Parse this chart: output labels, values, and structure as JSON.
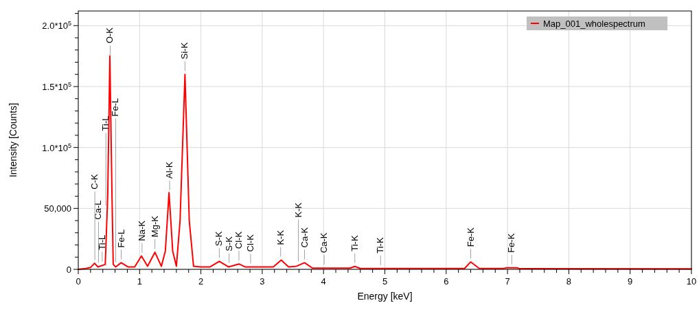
{
  "chart_data": {
    "type": "line",
    "xlabel": "Energy [keV]",
    "ylabel": "Intensity [Counts]",
    "xlim": [
      0,
      10
    ],
    "ylim": [
      0,
      212000
    ],
    "xticks": [
      0,
      {
        "value": 0.2,
        "label": null
      },
      {
        "value": 0.4,
        "label": null
      },
      {
        "value": 0.6,
        "label": null
      },
      {
        "value": 0.8,
        "label": null
      },
      1,
      {
        "value": 1.2,
        "label": null
      },
      {
        "value": 1.4,
        "label": null
      },
      {
        "value": 1.6,
        "label": null
      },
      {
        "value": 1.8,
        "label": null
      },
      2,
      {
        "value": 2.2,
        "label": null
      },
      {
        "value": 2.4,
        "label": null
      },
      {
        "value": 2.6,
        "label": null
      },
      {
        "value": 2.8,
        "label": null
      },
      3,
      {
        "value": 3.2,
        "label": null
      },
      {
        "value": 3.4,
        "label": null
      },
      {
        "value": 3.6,
        "label": null
      },
      {
        "value": 3.8,
        "label": null
      },
      4,
      {
        "value": 4.2,
        "label": null
      },
      {
        "value": 4.4,
        "label": null
      },
      {
        "value": 4.6,
        "label": null
      },
      {
        "value": 4.8,
        "label": null
      },
      5,
      {
        "value": 5.2,
        "label": null
      },
      {
        "value": 5.4,
        "label": null
      },
      {
        "value": 5.6,
        "label": null
      },
      {
        "value": 5.8,
        "label": null
      },
      6,
      {
        "value": 6.2,
        "label": null
      },
      {
        "value": 6.4,
        "label": null
      },
      {
        "value": 6.6,
        "label": null
      },
      {
        "value": 6.8,
        "label": null
      },
      7,
      {
        "value": 7.2,
        "label": null
      },
      {
        "value": 7.4,
        "label": null
      },
      {
        "value": 7.6,
        "label": null
      },
      {
        "value": 7.8,
        "label": null
      },
      8,
      {
        "value": 8.2,
        "label": null
      },
      {
        "value": 8.4,
        "label": null
      },
      {
        "value": 8.6,
        "label": null
      },
      {
        "value": 8.8,
        "label": null
      },
      9,
      {
        "value": 9.2,
        "label": null
      },
      {
        "value": 9.4,
        "label": null
      },
      {
        "value": 9.6,
        "label": null
      },
      {
        "value": 9.8,
        "label": null
      },
      10
    ],
    "yticks": [
      {
        "value": 0,
        "label": "0"
      },
      {
        "value": 10000,
        "label": null
      },
      {
        "value": 20000,
        "label": null
      },
      {
        "value": 30000,
        "label": null
      },
      {
        "value": 40000,
        "label": null
      },
      {
        "value": 50000,
        "label": "50,000"
      },
      {
        "value": 60000,
        "label": null
      },
      {
        "value": 70000,
        "label": null
      },
      {
        "value": 80000,
        "label": null
      },
      {
        "value": 90000,
        "label": null
      },
      {
        "value": 100000,
        "label": "1.0*10$^{5}$"
      },
      {
        "value": 110000,
        "label": null
      },
      {
        "value": 120000,
        "label": null
      },
      {
        "value": 130000,
        "label": null
      },
      {
        "value": 140000,
        "label": null
      },
      {
        "value": 150000,
        "label": "1.5*10$^{5}$"
      },
      {
        "value": 160000,
        "label": null
      },
      {
        "value": 170000,
        "label": null
      },
      {
        "value": 180000,
        "label": null
      },
      {
        "value": 190000,
        "label": null
      },
      {
        "value": 200000,
        "label": "2.0*10$^{5}$"
      },
      {
        "value": 210000,
        "label": null
      }
    ],
    "grid": true,
    "legend": "top right",
    "marker": "none",
    "line_style": "solid",
    "series": [
      {
        "name": "Map_001_wholespectrum",
        "color": "#ff0000",
        "x": [
          0,
          0.1,
          0.2,
          0.265,
          0.32,
          0.44,
          0.48,
          0.515,
          0.55,
          0.57,
          0.61,
          0.7,
          0.81,
          0.92,
          1.03,
          1.13,
          1.25,
          1.355,
          1.42,
          1.48,
          1.54,
          1.6,
          1.66,
          1.74,
          1.81,
          1.88,
          2.0,
          2.15,
          2.3,
          2.45,
          2.62,
          2.72,
          3.18,
          3.31,
          3.43,
          3.56,
          3.69,
          3.82,
          4.43,
          4.51,
          4.6,
          6.3,
          6.4,
          6.54,
          6.93,
          6.98,
          7.16,
          7.2,
          10
        ],
        "values": [
          0,
          500,
          1500,
          5000,
          2000,
          4000,
          60000,
          175000,
          60000,
          4000,
          2000,
          5400,
          2000,
          2000,
          11000,
          2500,
          14000,
          2500,
          15000,
          63000,
          15000,
          2500,
          40000,
          160000,
          40000,
          2500,
          2000,
          2000,
          6600,
          2000,
          4400,
          2000,
          2000,
          7600,
          2000,
          2600,
          5400,
          1000,
          1000,
          2400,
          700,
          700,
          6100,
          700,
          700,
          1200,
          1200,
          500,
          400
        ]
      }
    ],
    "ref_lines": [
      {
        "axis": "x",
        "value": 0.27,
        "label": "C-K"
      },
      {
        "axis": "x",
        "value": 0.33,
        "label": "Ca-L"
      },
      {
        "axis": "x",
        "value": 0.39,
        "label": "Ti-L"
      },
      {
        "axis": "x",
        "value": 0.45,
        "label": "Ti-L"
      },
      {
        "axis": "x",
        "value": 0.52,
        "label": "O-K"
      },
      {
        "axis": "x",
        "value": 0.61,
        "label": "Fe-L"
      },
      {
        "axis": "x",
        "value": 0.7,
        "label": "Fe-L"
      },
      {
        "axis": "x",
        "value": 1.04,
        "label": "Na-K"
      },
      {
        "axis": "x",
        "value": 1.25,
        "label": "Mg-K"
      },
      {
        "axis": "x",
        "value": 1.49,
        "label": "Al-K"
      },
      {
        "axis": "x",
        "value": 1.74,
        "label": "Si-K"
      },
      {
        "axis": "x",
        "value": 2.3,
        "label": "S-K"
      },
      {
        "axis": "x",
        "value": 2.46,
        "label": "S-K"
      },
      {
        "axis": "x",
        "value": 2.62,
        "label": "Cl-K"
      },
      {
        "axis": "x",
        "value": 2.81,
        "label": "Cl-K"
      },
      {
        "axis": "x",
        "value": 3.3,
        "label": "K-K"
      },
      {
        "axis": "x",
        "value": 3.59,
        "label": "K-K"
      },
      {
        "axis": "x",
        "value": 3.69,
        "label": "Ca-K"
      },
      {
        "axis": "x",
        "value": 4.01,
        "label": "Ca-K"
      },
      {
        "axis": "x",
        "value": 4.51,
        "label": "Ti-K"
      },
      {
        "axis": "x",
        "value": 4.93,
        "label": "Ti-K"
      },
      {
        "axis": "x",
        "value": 6.4,
        "label": "Fe-K"
      },
      {
        "axis": "x",
        "value": 7.07,
        "label": "Fe-K"
      }
    ]
  }
}
